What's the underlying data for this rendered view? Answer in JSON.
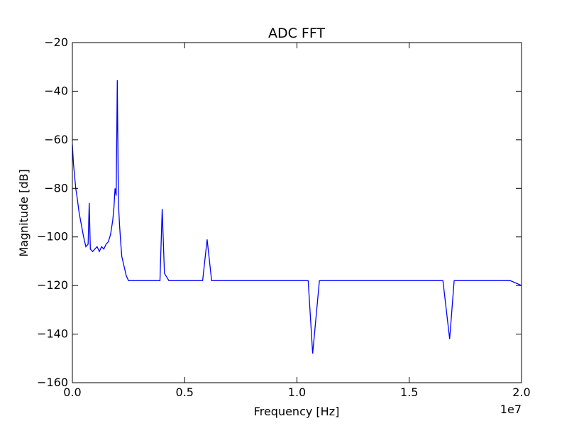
{
  "chart_data": {
    "type": "line",
    "title": "ADC FFT",
    "xlabel": "Frequency [Hz]",
    "ylabel": "Magnitude [dB]",
    "x_offset_label": "1e7",
    "xlim": [
      0,
      20000000
    ],
    "ylim": [
      -160,
      -20
    ],
    "xticks": [
      0,
      5000000,
      10000000,
      15000000,
      20000000
    ],
    "xtick_labels": [
      "0.0",
      "0.5",
      "1.0",
      "1.5",
      "2.0"
    ],
    "yticks": [
      -160,
      -140,
      -120,
      -100,
      -80,
      -60,
      -40,
      -20
    ],
    "ytick_labels": [
      "−160",
      "−140",
      "−120",
      "−100",
      "−80",
      "−60",
      "−40",
      "−20"
    ],
    "grid": false,
    "line_color": "#0000ff",
    "series": [
      {
        "name": "",
        "x": [
          0,
          50000,
          100000,
          150000,
          200000,
          300000,
          400000,
          500000,
          600000,
          700000,
          750000,
          800000,
          900000,
          1000000,
          1100000,
          1200000,
          1300000,
          1400000,
          1500000,
          1600000,
          1700000,
          1800000,
          1850000,
          1900000,
          1950000,
          2000000,
          2050000,
          2100000,
          2150000,
          2200000,
          2300000,
          2400000,
          2500000,
          3000000,
          3500000,
          3900000,
          4000000,
          4100000,
          4300000,
          4500000,
          5000000,
          5500000,
          5800000,
          6000000,
          6200000,
          6500000,
          7000000,
          7500000,
          8000000,
          8500000,
          9000000,
          9500000,
          10000000,
          10500000,
          10700000,
          11000000,
          11500000,
          12000000,
          12500000,
          13000000,
          13500000,
          13800000,
          14000000,
          14500000,
          15000000,
          15500000,
          16000000,
          16500000,
          16800000,
          17000000,
          17500000,
          18000000,
          18500000,
          19000000,
          19500000,
          20000000
        ],
        "values": [
          -62,
          -70,
          -75,
          -80,
          -83,
          -90,
          -95,
          -100,
          -104,
          -103,
          -86,
          -105,
          -106,
          -105,
          -104,
          -106,
          -104,
          -105,
          -103,
          -102,
          -99,
          -93,
          -88,
          -80,
          -83,
          -35.5,
          -86,
          -95,
          -102,
          -108,
          -112,
          -116,
          -118,
          -118,
          -118,
          -118,
          -88.5,
          -115,
          -118,
          -118,
          -118,
          -118,
          -118,
          -101,
          -118,
          -118,
          -118,
          -118,
          -118,
          -118,
          -118,
          -118,
          -118,
          -118,
          -148,
          -118,
          -118,
          -118,
          -118,
          -118,
          -118,
          -118,
          -118,
          -118,
          -118,
          -118,
          -118,
          -118,
          -142,
          -118,
          -118,
          -118,
          -118,
          -118,
          -118,
          -120
        ]
      }
    ]
  }
}
